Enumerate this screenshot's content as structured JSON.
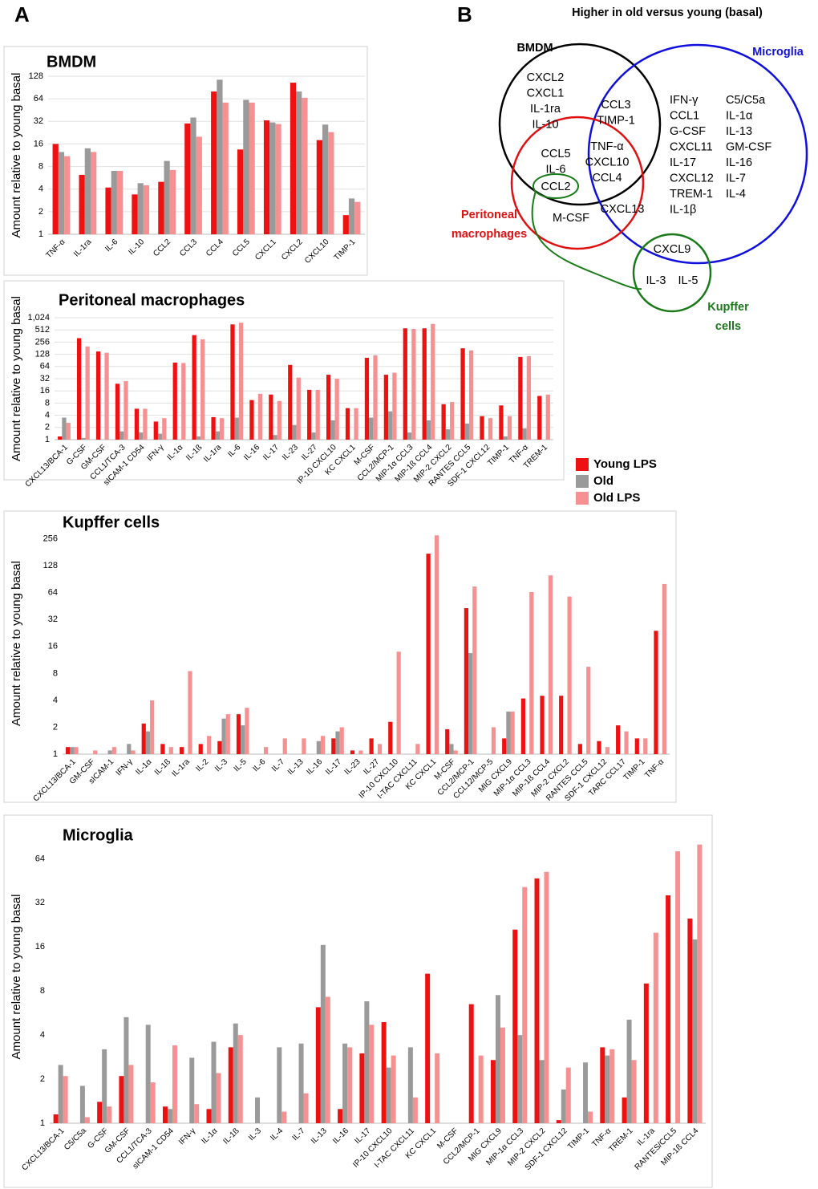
{
  "panel_labels": [
    "A",
    "B"
  ],
  "chart_data": [
    {
      "type": "bar",
      "title": "BMDM",
      "y_label": "Amount relative to young basal",
      "log_scale": 2,
      "grid": true,
      "categories": [
        "TNF-α",
        "IL-1ra",
        "IL-6",
        "IL-10",
        "CCL2",
        "CCL3",
        "CCL4",
        "CCL5",
        "CXCL1",
        "CXCL2",
        "CXCL10",
        "TIMP-1"
      ],
      "series": [
        {
          "name": "Young LPS",
          "color": "#ee1111",
          "values": [
            16,
            6.2,
            4.2,
            3.4,
            5,
            30,
            80,
            13.5,
            33,
            105,
            18,
            1.8
          ]
        },
        {
          "name": "Old",
          "color": "#9a9a9a",
          "values": [
            12.5,
            14,
            7,
            4.8,
            9.5,
            36,
            115,
            62,
            31,
            80,
            29,
            3
          ]
        },
        {
          "name": "Old LPS",
          "color": "#f79191",
          "values": [
            11,
            12.5,
            7,
            4.5,
            7.2,
            20,
            57,
            57,
            29.5,
            66,
            23,
            2.7
          ]
        }
      ],
      "ylim": [
        1,
        128
      ],
      "yticks": [
        1,
        2,
        4,
        8,
        16,
        32,
        64,
        128
      ]
    },
    {
      "type": "bar",
      "title": "Peritoneal macrophages",
      "y_label": "Amount relative to young basal",
      "log_scale": 2,
      "grid": true,
      "legend": "outside-right",
      "categories": [
        "CXCL13/BCA-1",
        "G-CSF",
        "GM-CSF",
        "CCL1/TCA-3",
        "sICAM-1 CD54",
        "IFN-γ",
        "IL-1α",
        "IL-1ß",
        "IL-1ra",
        "IL-6",
        "IL-16",
        "IL-17",
        "IL-23",
        "IL-27",
        "IP-10 CXCL10",
        "KC CXCL1",
        "M-CSF",
        "CCL2/MCP-1",
        "MIP-1α CCL3",
        "MIP-1ß CCL4",
        "MIP-2 CXCL2",
        "RANTES CCL5",
        "SDF-1 CXCL12",
        "TIMP-1",
        "TNF-α",
        "TREM-1"
      ],
      "series": [
        {
          "name": "Young LPS",
          "color": "#ee1111",
          "values": [
            1.2,
            320,
            150,
            24,
            5.8,
            2.8,
            80,
            380,
            3.6,
            700,
            9.5,
            13,
            70,
            17,
            40,
            6,
            105,
            40,
            560,
            560,
            7.5,
            180,
            3.8,
            7,
            110,
            12
          ]
        },
        {
          "name": "Old",
          "color": "#9a9a9a",
          "values": [
            3.5,
            1.1,
            1,
            1.6,
            1.5,
            1.4,
            1,
            1.2,
            1.6,
            3.5,
            1,
            1.3,
            2.3,
            1.5,
            3,
            1,
            3.5,
            5,
            1.5,
            3,
            1.8,
            2.5,
            1,
            1.2,
            1.9,
            1
          ]
        },
        {
          "name": "Old LPS",
          "color": "#f79191",
          "values": [
            2.6,
            200,
            140,
            28,
            5.8,
            3.4,
            78,
            300,
            3.4,
            770,
            13.5,
            9,
            34,
            17,
            32,
            6,
            120,
            45,
            540,
            720,
            8.5,
            160,
            3.4,
            3.8,
            115,
            13
          ]
        }
      ],
      "ylim": [
        1,
        1024
      ],
      "yticks": [
        1,
        2,
        4,
        8,
        16,
        32,
        64,
        128,
        256,
        512,
        {
          "value": 1024,
          "label": "1,024"
        }
      ]
    },
    {
      "type": "bar",
      "title": "Kupffer cells",
      "y_label": "Amount relative to young basal",
      "log_scale": 2,
      "grid": false,
      "categories": [
        "CXCL13/BCA-1",
        "GM-CSF",
        "sICAM-1",
        "IFN-γ",
        "IL-1α",
        "IL-1ß",
        "IL-1ra",
        "IL-2",
        "IL-3",
        "IL-5",
        "IL-6",
        "IL-7",
        "IL-13",
        "IL-16",
        "IL-17",
        "IL-23",
        "IL-27",
        "IP-10 CXCL10",
        "I-TAC CXCL11",
        "KC CXCL1",
        "M-CSF",
        "CCL2/MCP-1",
        "CCL12/MCP-5",
        "MIG CXCL9",
        "MIP-1α CCL3",
        "MIP-1ß CCL4",
        "MIP-2 CXCL2",
        "RANTES CCL5",
        "SDF-1 CXCL12",
        "TARC CCL17",
        "TIMP-1",
        "TNF-α"
      ],
      "series": [
        {
          "name": "Young LPS",
          "color": "#ee1111",
          "values": [
            1.2,
            1,
            1,
            1,
            2.2,
            1.3,
            1.2,
            1.3,
            1.4,
            2.8,
            1,
            1,
            1,
            1,
            1.5,
            1.1,
            1.5,
            2.3,
            1,
            175,
            1.9,
            43,
            1,
            1.5,
            4.2,
            4.5,
            4.5,
            1.3,
            1.4,
            2.1,
            1.5,
            24
          ]
        },
        {
          "name": "Old",
          "color": "#9a9a9a",
          "values": [
            1.2,
            1,
            1.1,
            1.3,
            1.8,
            1,
            1,
            1,
            2.5,
            2.1,
            1,
            1,
            1,
            1.4,
            1.8,
            1,
            1,
            1,
            1,
            1,
            1.3,
            13.5,
            1,
            3,
            1,
            1,
            1,
            1,
            1,
            1,
            1,
            1
          ]
        },
        {
          "name": "Old LPS",
          "color": "#f79191",
          "values": [
            1.2,
            1.1,
            1.2,
            1.1,
            4,
            1.2,
            8.5,
            1.6,
            2.8,
            3.3,
            1.2,
            1.5,
            1.5,
            1.6,
            2,
            1.1,
            1.3,
            14,
            1.3,
            280,
            1.1,
            75,
            2,
            3,
            65,
            100,
            58,
            9.5,
            1.2,
            1.8,
            1.5,
            80
          ]
        }
      ],
      "ylim": [
        1,
        300
      ],
      "yticks": [
        1,
        2,
        4,
        8,
        16,
        32,
        64,
        128,
        256
      ]
    },
    {
      "type": "bar",
      "title": "Microglia",
      "y_label": "Amount relative to young basal",
      "log_scale": 2,
      "grid": false,
      "categories": [
        "CXCL13/BCA-1",
        "C5/C5a",
        "G-CSF",
        "GM-CSF",
        "CCL1/TCA-3",
        "sICAM-1 CD54",
        "IFN-γ",
        "IL-1α",
        "IL-1ß",
        "IL-3",
        "IL-4",
        "IL-7",
        "IL-13",
        "IL-16",
        "IL-17",
        "IP-10 CXCL10",
        "I-TAC CXCL11",
        "KC CXCL1",
        "M-CSF",
        "CCL2/MCP-1",
        "MIG CXCL9",
        "MIP-1α CCL3",
        "MIP-2 CXCL2",
        "SDF-1 CXCL12",
        "TIMP-1",
        "TNF-α",
        "TREM-1",
        "IL-1ra",
        "RANTES/CCL5",
        "MIP-1ß CCL4"
      ],
      "series": [
        {
          "name": "Young LPS",
          "color": "#ee1111",
          "values": [
            1.15,
            1,
            1.4,
            2.1,
            1,
            1.3,
            1,
            1.25,
            3.3,
            1,
            1,
            1,
            6.2,
            1.25,
            3,
            4.9,
            1,
            10.5,
            1,
            6.5,
            2.7,
            21,
            47,
            1.05,
            1,
            3.3,
            1.5,
            9,
            36,
            25
          ]
        },
        {
          "name": "Old",
          "color": "#9a9a9a",
          "values": [
            2.5,
            1.8,
            3.2,
            5.3,
            4.7,
            1.25,
            2.8,
            3.6,
            4.8,
            1.5,
            3.3,
            3.5,
            16.5,
            3.5,
            6.8,
            2.4,
            3.3,
            1,
            1,
            1,
            7.5,
            4,
            2.7,
            1.7,
            2.6,
            2.9,
            5.1,
            1,
            1,
            18
          ]
        },
        {
          "name": "Old LPS",
          "color": "#f79191",
          "values": [
            2.1,
            1.1,
            1.3,
            2.5,
            1.9,
            3.4,
            1.35,
            2.2,
            4,
            1,
            1.2,
            1.6,
            7.3,
            3.3,
            4.7,
            2.9,
            1.5,
            3,
            1,
            2.9,
            4.5,
            41,
            52,
            2.4,
            1.2,
            3.2,
            2.7,
            20,
            72,
            80
          ]
        }
      ],
      "ylim": [
        1,
        100
      ],
      "yticks": [
        1,
        2,
        4,
        8,
        16,
        32,
        64
      ]
    }
  ],
  "venn": {
    "title": "Higher in old versus young (basal)",
    "set_labels": {
      "bmdm": [
        "BMDM"
      ],
      "microglia": [
        "Microglia"
      ],
      "peritoneal": [
        "Peritoneal",
        "macrophages"
      ],
      "kupffer": [
        "Kupffer",
        "cells"
      ]
    },
    "regions": {
      "bmdm_only": [
        "CXCL2",
        "CXCL1",
        "IL-1ra",
        "IL-10"
      ],
      "bmdm_microglia": [
        "CCL3",
        "TIMP-1"
      ],
      "bmdm_peritoneal": [
        "CCL5",
        "IL-6"
      ],
      "bmdm_peritoneal_kupffer": [
        "CCL2"
      ],
      "bmdm_peritoneal_microglia": [
        "TNF-α",
        "CXCL10",
        "CCL4"
      ],
      "peritoneal_microglia": [
        "CXCL13"
      ],
      "peritoneal_kupffer": [
        "M-CSF"
      ],
      "microglia_only_col1": [
        "IFN-γ",
        "CCL1",
        "G-CSF",
        "CXCL11",
        "IL-17",
        "CXCL12",
        "TREM-1",
        "IL-1β"
      ],
      "microglia_only_col2": [
        "C5/C5a",
        "IL-1α",
        "IL-13",
        "GM-CSF",
        "IL-16",
        "IL-7",
        "IL-4"
      ],
      "microglia_kupffer": [
        "CXCL9"
      ],
      "kupffer_only": [
        "IL-3",
        "IL-5"
      ]
    }
  }
}
